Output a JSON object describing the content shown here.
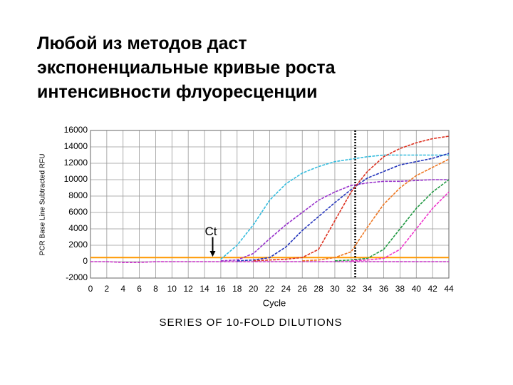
{
  "heading": [
    "Любой из методов даст",
    "экспоненциальные кривые роста",
    "интенсивности флуоресценции"
  ],
  "chart_data": {
    "type": "line",
    "ylabel": "PCR Base Line Subtracted RFU",
    "xlabel": "Cycle",
    "caption": "SERIES OF 10-FOLD DILUTIONS",
    "annotation": "Ct",
    "x": [
      0,
      2,
      4,
      6,
      8,
      10,
      12,
      14,
      16,
      18,
      20,
      22,
      24,
      26,
      28,
      30,
      32,
      34,
      36,
      38,
      40,
      42,
      44
    ],
    "series": [
      {
        "color": "#cc33cc",
        "values": [
          0,
          0,
          -100,
          -100,
          0,
          0,
          0,
          0,
          0,
          0,
          0,
          0,
          0,
          0,
          0,
          0,
          0,
          0,
          0,
          0,
          0,
          0,
          0
        ]
      },
      {
        "color": "#33bbdd",
        "values": [
          null,
          null,
          null,
          null,
          null,
          null,
          null,
          null,
          300,
          2000,
          4500,
          7500,
          9500,
          10800,
          11600,
          12200,
          12500,
          12800,
          13000,
          13000,
          13000,
          13000,
          13000
        ]
      },
      {
        "color": "#9933cc",
        "values": [
          null,
          null,
          null,
          null,
          null,
          null,
          null,
          null,
          100,
          200,
          1000,
          2800,
          4500,
          6000,
          7500,
          8500,
          9300,
          9600,
          9800,
          9800,
          9900,
          10000,
          10000
        ]
      },
      {
        "color": "#2233bb",
        "values": [
          null,
          null,
          null,
          null,
          null,
          null,
          null,
          null,
          null,
          100,
          200,
          500,
          1800,
          3800,
          5500,
          7200,
          8800,
          10200,
          11000,
          11800,
          12200,
          12600,
          13200
        ]
      },
      {
        "color": "#dd3322",
        "values": [
          null,
          null,
          null,
          null,
          null,
          null,
          null,
          null,
          null,
          null,
          100,
          200,
          300,
          500,
          1500,
          5000,
          8500,
          11000,
          12800,
          13800,
          14500,
          15000,
          15300
        ]
      },
      {
        "color": "#ee7722",
        "values": [
          null,
          null,
          null,
          null,
          null,
          null,
          null,
          null,
          null,
          null,
          null,
          null,
          null,
          100,
          200,
          500,
          1200,
          4200,
          7000,
          9000,
          10500,
          11500,
          12500
        ]
      },
      {
        "color": "#229944",
        "values": [
          null,
          null,
          null,
          null,
          null,
          null,
          null,
          null,
          null,
          null,
          null,
          null,
          null,
          null,
          null,
          100,
          200,
          400,
          1500,
          4000,
          6500,
          8500,
          10000
        ]
      },
      {
        "color": "#ee33cc",
        "values": [
          null,
          null,
          null,
          null,
          null,
          null,
          null,
          null,
          null,
          null,
          null,
          null,
          null,
          null,
          null,
          null,
          100,
          200,
          400,
          1500,
          4000,
          6500,
          8500
        ]
      }
    ],
    "threshold": 500,
    "threshold_color": "#ff9900",
    "marker_x": 32.5,
    "xlim": [
      0,
      44
    ],
    "ylim": [
      -2000,
      16000
    ],
    "xticks": [
      0,
      2,
      4,
      6,
      8,
      10,
      12,
      14,
      16,
      18,
      20,
      22,
      24,
      26,
      28,
      30,
      32,
      34,
      36,
      38,
      40,
      42,
      44
    ],
    "yticks": [
      -2000,
      0,
      2000,
      4000,
      6000,
      8000,
      10000,
      12000,
      14000,
      16000
    ],
    "grid": true
  }
}
